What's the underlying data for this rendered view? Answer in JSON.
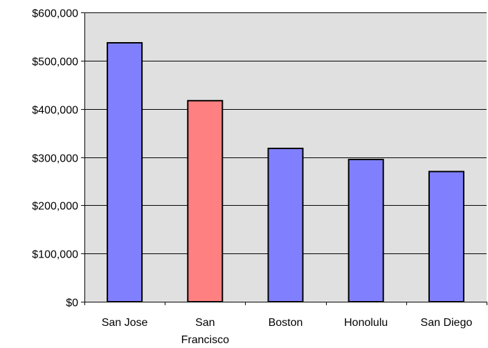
{
  "chart_data": {
    "type": "bar",
    "title": "",
    "xlabel": "",
    "ylabel": "",
    "categories": [
      "San Jose",
      "San Francisco",
      "Boston",
      "Honolulu",
      "San Diego"
    ],
    "category_label_lines": [
      [
        "San Jose"
      ],
      [
        "San",
        "Francisco"
      ],
      [
        "Boston"
      ],
      [
        "Honolulu"
      ],
      [
        "San Diego"
      ]
    ],
    "values": [
      537000,
      417000,
      318000,
      295000,
      270000
    ],
    "bar_colors": [
      "#8080ff",
      "#ff8080",
      "#8080ff",
      "#8080ff",
      "#8080ff"
    ],
    "ylim": [
      0,
      600000
    ],
    "yticks": [
      0,
      100000,
      200000,
      300000,
      400000,
      500000,
      600000
    ],
    "ytick_labels": [
      "$0",
      "$100,000",
      "$200,000",
      "$300,000",
      "$400,000",
      "$500,000",
      "$600,000"
    ],
    "grid": true,
    "legend": "none",
    "plot_background": "#e0e0e0",
    "bar_outline": "#000000"
  }
}
